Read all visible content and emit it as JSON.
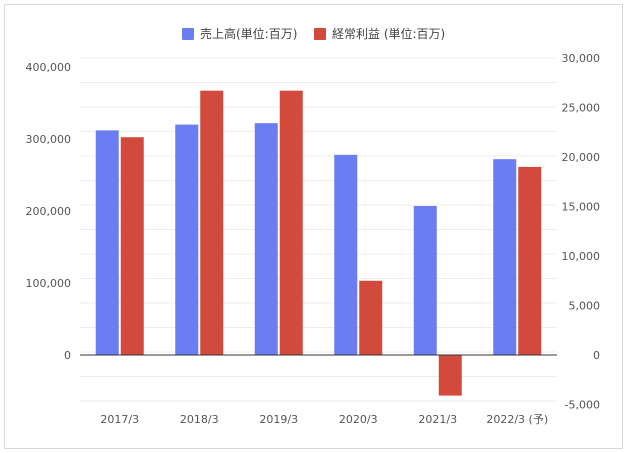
{
  "chart_data": {
    "type": "bar",
    "categories": [
      "2017/3",
      "2018/3",
      "2019/3",
      "2020/3",
      "2021/3",
      "2022/3 (予)"
    ],
    "series": [
      {
        "name": "売上高(単位:百万)",
        "axis": "left",
        "color": "#6a7ef2",
        "values": [
          312000,
          320000,
          322000,
          278000,
          207000,
          272000
        ]
      },
      {
        "name": "経常利益 (単位:百万)",
        "axis": "right",
        "color": "#d14a3c",
        "values": [
          22000,
          26700,
          26700,
          7500,
          -4100,
          19000
        ]
      }
    ],
    "y_left": {
      "min": -50000,
      "max": 400000,
      "ticks": [
        0,
        100000,
        200000,
        300000,
        400000
      ],
      "tick_labels": [
        "0",
        "100,000",
        "200,000",
        "300,000",
        "400,000"
      ]
    },
    "y_right": {
      "min": -5000,
      "max": 30000,
      "ticks": [
        -5000,
        0,
        5000,
        10000,
        15000,
        20000,
        25000,
        30000
      ],
      "tick_labels": [
        "-5,000",
        "0",
        "5,000",
        "10,000",
        "15,000",
        "20,000",
        "25,000",
        "30,000"
      ]
    },
    "legend_position": "top",
    "grid": true,
    "title": "",
    "xlabel": "",
    "ylabel": ""
  }
}
